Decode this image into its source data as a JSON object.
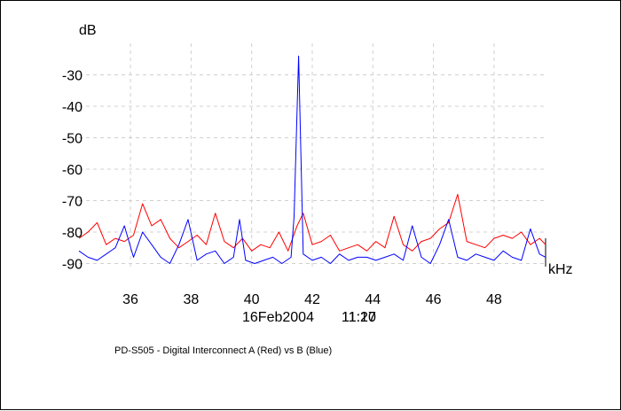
{
  "chart_data": {
    "type": "line",
    "ylabel": "dB",
    "xlabel": "kHz",
    "xlim": [
      34.3,
      49.7
    ],
    "ylim": [
      -91,
      -20
    ],
    "x_ticks": [
      36,
      38,
      40,
      42,
      44,
      46,
      48
    ],
    "x_tick_labels": [
      "36",
      "38",
      "40",
      "42",
      "44",
      "46",
      "48"
    ],
    "y_ticks": [
      -30,
      -40,
      -50,
      -60,
      -70,
      -80,
      -90
    ],
    "y_tick_labels": [
      "-30",
      "-40",
      "-50",
      "-60",
      "-70",
      "-80",
      "-90"
    ],
    "grid": true,
    "timestamp_date": "16Feb2004",
    "timestamp_time_1": "11:20",
    "timestamp_time_2": "11:17",
    "caption": "PD-S505 - Digital Interconnect A (Red) vs B (Blue)",
    "series": [
      {
        "color": "#ff0000",
        "x": [
          34.3,
          34.6,
          34.9,
          35.2,
          35.5,
          35.8,
          36.1,
          36.4,
          36.7,
          37.0,
          37.3,
          37.6,
          37.9,
          38.2,
          38.5,
          38.8,
          39.1,
          39.4,
          39.7,
          40.0,
          40.3,
          40.6,
          40.9,
          41.2,
          41.5,
          41.7,
          42.0,
          42.3,
          42.6,
          42.9,
          43.2,
          43.5,
          43.8,
          44.1,
          44.4,
          44.7,
          45.0,
          45.3,
          45.6,
          45.9,
          46.2,
          46.5,
          46.8,
          47.1,
          47.4,
          47.7,
          48.0,
          48.3,
          48.6,
          48.9,
          49.2,
          49.5,
          49.7
        ],
        "y": [
          -82,
          -80,
          -77,
          -84,
          -82,
          -83,
          -81,
          -71,
          -78,
          -76,
          -82,
          -85,
          -83,
          -81,
          -84,
          -74,
          -83,
          -85,
          -82,
          -86,
          -84,
          -85,
          -80,
          -86,
          -78,
          -74,
          -84,
          -83,
          -81,
          -86,
          -85,
          -84,
          -86,
          -83,
          -85,
          -75,
          -84,
          -86,
          -83,
          -82,
          -79,
          -77,
          -68,
          -83,
          -84,
          -85,
          -82,
          -81,
          -82,
          -80,
          -84,
          -82,
          -84
        ]
      },
      {
        "color": "#0000ff",
        "x": [
          34.3,
          34.6,
          34.9,
          35.2,
          35.5,
          35.8,
          36.1,
          36.4,
          36.7,
          37.0,
          37.3,
          37.6,
          37.9,
          38.2,
          38.5,
          38.8,
          39.1,
          39.4,
          39.6,
          39.8,
          40.1,
          40.4,
          40.7,
          41.0,
          41.3,
          41.4,
          41.55,
          41.7,
          42.0,
          42.3,
          42.6,
          42.9,
          43.2,
          43.5,
          43.8,
          44.1,
          44.4,
          44.7,
          45.0,
          45.3,
          45.6,
          45.9,
          46.2,
          46.5,
          46.8,
          47.1,
          47.4,
          47.7,
          48.0,
          48.3,
          48.6,
          48.9,
          49.2,
          49.5,
          49.7
        ],
        "y": [
          -86,
          -88,
          -89,
          -87,
          -85,
          -78,
          -88,
          -80,
          -84,
          -88,
          -90,
          -84,
          -76,
          -89,
          -87,
          -86,
          -90,
          -88,
          -76,
          -89,
          -90,
          -89,
          -88,
          -90,
          -88,
          -75,
          -24,
          -87,
          -89,
          -88,
          -90,
          -87,
          -89,
          -88,
          -88,
          -89,
          -88,
          -87,
          -89,
          -78,
          -88,
          -90,
          -84,
          -76,
          -88,
          -89,
          -87,
          -88,
          -89,
          -86,
          -88,
          -89,
          -79,
          -87,
          -88
        ]
      }
    ]
  }
}
